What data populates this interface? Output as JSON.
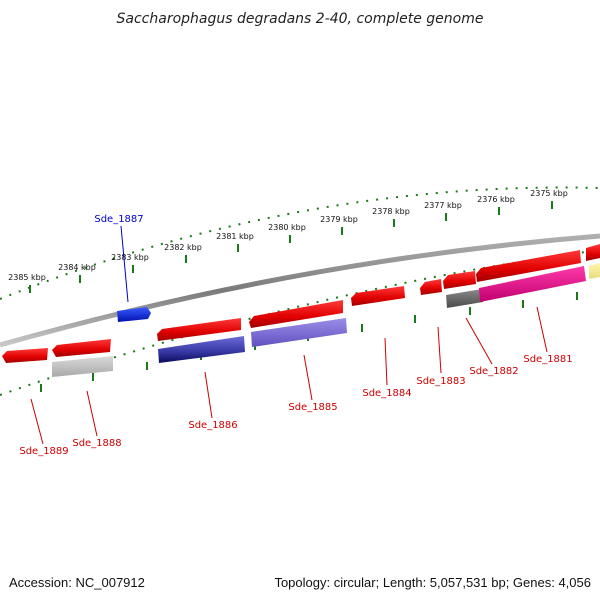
{
  "title": "Saccharophagus degradans 2-40, complete genome",
  "footer": {
    "accession": "Accession: NC_007912",
    "summary": "Topology: circular; Length: 5,057,531 bp; Genes: 4,056"
  },
  "colors": {
    "forward_gene": "#e00000",
    "highlight_gene": "#0a1ee8",
    "label_red": "#cc0000",
    "label_blue": "#0000cc",
    "backbone": "#8a8a8a",
    "tick": "#1a7a1a"
  },
  "ticks": [
    "2385 kbp",
    "2384 kbp",
    "2383 kbp",
    "2382 kbp",
    "2381 kbp",
    "2380 kbp",
    "2379 kbp",
    "2378 kbp",
    "2377 kbp",
    "2376 kbp",
    "2375 kbp"
  ],
  "genes": [
    {
      "label": "Sde_1889",
      "color": "red"
    },
    {
      "label": "Sde_1888",
      "color": "red"
    },
    {
      "label": "Sde_1887",
      "color": "blue"
    },
    {
      "label": "Sde_1886",
      "color": "red"
    },
    {
      "label": "Sde_1885",
      "color": "red"
    },
    {
      "label": "Sde_1884",
      "color": "red"
    },
    {
      "label": "Sde_1883",
      "color": "red"
    },
    {
      "label": "Sde_1882",
      "color": "red"
    },
    {
      "label": "Sde_1881",
      "color": "red"
    }
  ]
}
